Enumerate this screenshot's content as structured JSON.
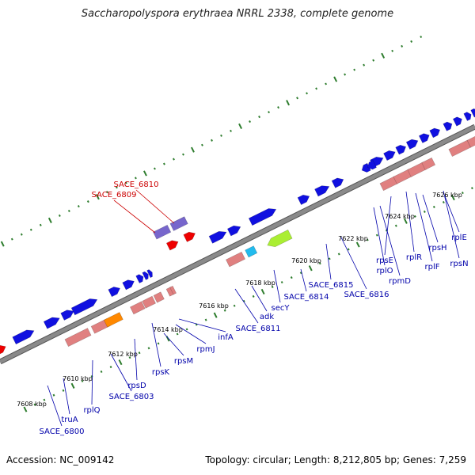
{
  "title": "Saccharopolyspora erythraea NRRL 2338, complete genome",
  "footer": {
    "accession": "Accession: NC_009142",
    "summary": "Topology: circular; Length: 8,212,805 bp; Genes: 7,259"
  },
  "colors": {
    "backbone": "#8a8a8a",
    "backbone_edge": "#555555",
    "tick": "#2e7d2e",
    "cds_forward": "#1010e0",
    "cds_reverse": "#e08080",
    "rna": "#7766cc",
    "special_orange": "#ff8800",
    "special_cyan": "#22bbee",
    "special_green": "#aaee33",
    "red_gene": "#ee0000",
    "label_blue": "#0000aa",
    "label_red": "#cc0000"
  },
  "ruler_labels": [
    "7608 kbp",
    "7610 kbp",
    "7612 kbp",
    "7614 kbp",
    "7616 kbp",
    "7618 kbp",
    "7620 kbp",
    "7622 kbp",
    "7624 kbp",
    "7626 kbp"
  ],
  "gene_labels_blue": [
    "SACE_6800",
    "truA",
    "rplQ",
    "SACE_6803",
    "rpsD",
    "rpsK",
    "rpsM",
    "rpmJ",
    "infA",
    "SACE_6811",
    "adk",
    "secY",
    "SACE_6814",
    "SACE_6815",
    "SACE_6816",
    "rplO",
    "rpmD",
    "rpsE",
    "rplR",
    "rplF",
    "rpsH",
    "rpsN",
    "rplE"
  ],
  "gene_labels_red": [
    "SACE_6810",
    "SACE_6809"
  ]
}
